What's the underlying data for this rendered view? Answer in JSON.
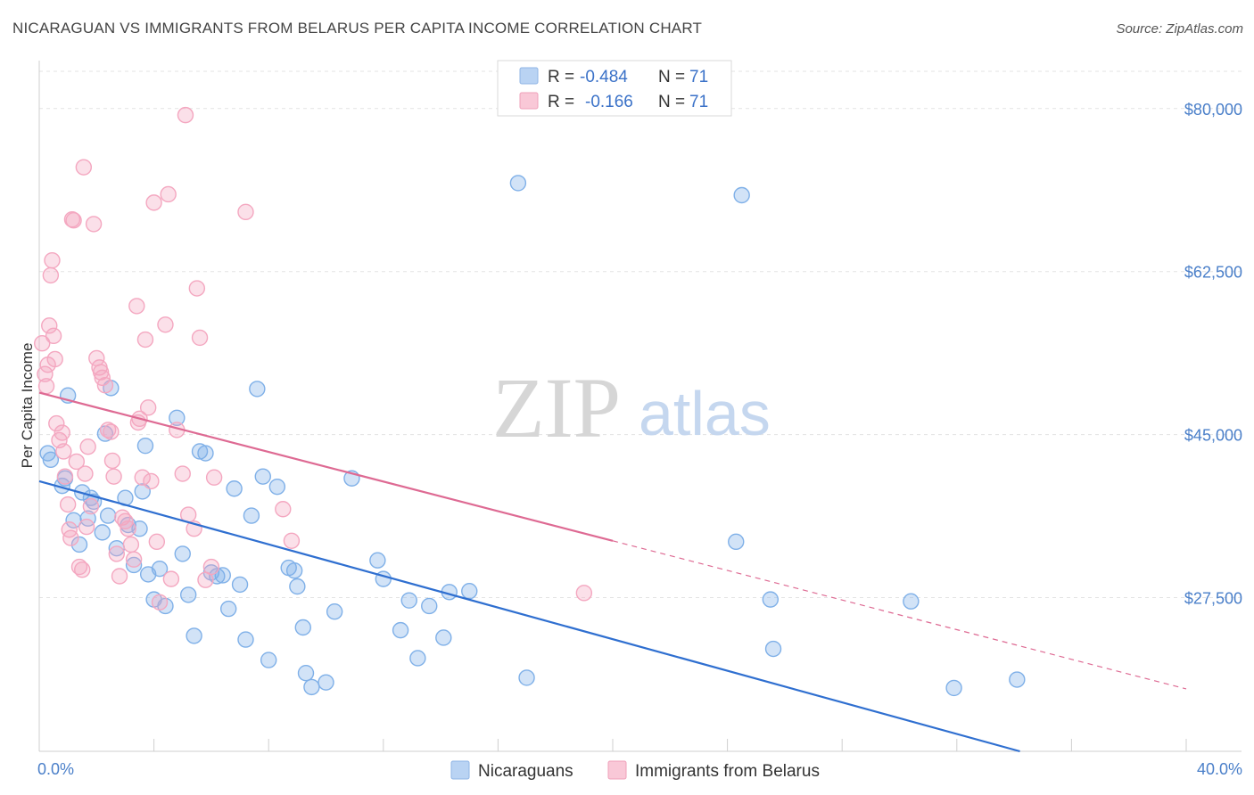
{
  "title": "NICARAGUAN VS IMMIGRANTS FROM BELARUS PER CAPITA INCOME CORRELATION CHART",
  "source": "Source: ZipAtlas.com",
  "chart_data": {
    "type": "scatter",
    "title": "NICARAGUAN VS IMMIGRANTS FROM BELARUS PER CAPITA INCOME CORRELATION CHART",
    "ylabel": "Per Capita Income",
    "xlabel": "",
    "xlim": [
      0,
      40
    ],
    "ylim": [
      11000,
      84000
    ],
    "x_tick_labels": [
      "0.0%",
      "40.0%"
    ],
    "y_ticks": [
      27500,
      45000,
      62500,
      80000
    ],
    "y_tick_labels": [
      "$27,500",
      "$45,000",
      "$62,500",
      "$80,000"
    ],
    "watermark": {
      "zip": "ZIP",
      "atlas": "atlas"
    },
    "legend": [
      {
        "r_label": "R =",
        "r_value": "-0.484",
        "n_label": "N =",
        "n_value": "71",
        "color": "#a8c8ef"
      },
      {
        "r_label": "R =",
        "r_value": "-0.166",
        "n_label": "N =",
        "n_value": "71",
        "color": "#f6b8cc"
      }
    ],
    "series": [
      {
        "name": "Nicaraguans",
        "color": "#7fb0e8",
        "line_color": "#2f6fd0",
        "trend": {
          "x0": 0,
          "y0": 40000,
          "x1": 34.2,
          "y1": 11000
        },
        "points": [
          [
            0.3,
            43000
          ],
          [
            0.4,
            42300
          ],
          [
            0.8,
            39500
          ],
          [
            0.9,
            40300
          ],
          [
            1.0,
            49200
          ],
          [
            1.2,
            35800
          ],
          [
            1.4,
            33200
          ],
          [
            1.5,
            38800
          ],
          [
            1.7,
            36000
          ],
          [
            1.8,
            38200
          ],
          [
            1.9,
            37800
          ],
          [
            2.2,
            34500
          ],
          [
            2.3,
            45100
          ],
          [
            2.4,
            36300
          ],
          [
            2.5,
            50000
          ],
          [
            2.7,
            32800
          ],
          [
            3.0,
            38200
          ],
          [
            3.1,
            35300
          ],
          [
            3.3,
            31000
          ],
          [
            3.5,
            34900
          ],
          [
            3.6,
            38900
          ],
          [
            3.7,
            43800
          ],
          [
            3.8,
            30000
          ],
          [
            4.0,
            27300
          ],
          [
            4.2,
            30600
          ],
          [
            4.4,
            26600
          ],
          [
            4.8,
            46800
          ],
          [
            5.0,
            32200
          ],
          [
            5.2,
            27800
          ],
          [
            5.4,
            23400
          ],
          [
            5.6,
            43200
          ],
          [
            5.8,
            43000
          ],
          [
            6.0,
            30200
          ],
          [
            6.2,
            29800
          ],
          [
            6.4,
            29900
          ],
          [
            6.6,
            26300
          ],
          [
            6.8,
            39200
          ],
          [
            7.0,
            28900
          ],
          [
            7.2,
            23000
          ],
          [
            7.4,
            36300
          ],
          [
            7.6,
            49900
          ],
          [
            7.8,
            40500
          ],
          [
            8.0,
            20800
          ],
          [
            8.3,
            39400
          ],
          [
            8.7,
            30700
          ],
          [
            8.9,
            30400
          ],
          [
            9.0,
            28700
          ],
          [
            9.2,
            24300
          ],
          [
            9.3,
            19400
          ],
          [
            9.5,
            17900
          ],
          [
            10.0,
            18400
          ],
          [
            10.3,
            26000
          ],
          [
            10.9,
            40300
          ],
          [
            11.8,
            31500
          ],
          [
            12.0,
            29500
          ],
          [
            12.6,
            24000
          ],
          [
            12.9,
            27200
          ],
          [
            13.2,
            21000
          ],
          [
            13.6,
            26600
          ],
          [
            14.1,
            23200
          ],
          [
            14.3,
            28100
          ],
          [
            15.0,
            28200
          ],
          [
            16.7,
            72000
          ],
          [
            17.0,
            18900
          ],
          [
            24.3,
            33500
          ],
          [
            24.5,
            70700
          ],
          [
            25.5,
            27300
          ],
          [
            25.6,
            22000
          ],
          [
            30.4,
            27100
          ],
          [
            31.9,
            17800
          ],
          [
            34.1,
            18700
          ]
        ]
      },
      {
        "name": "Immigrants from Belarus",
        "color": "#f4a7c0",
        "line_color": "#de6a93",
        "trend": {
          "x0": 0,
          "y0": 49500,
          "x1": 20,
          "y1": 33600
        },
        "trend_ext": {
          "x0": 20,
          "y0": 33600,
          "x1": 40,
          "y1": 17700
        },
        "points": [
          [
            0.1,
            54800
          ],
          [
            0.2,
            51500
          ],
          [
            0.25,
            50200
          ],
          [
            0.3,
            52500
          ],
          [
            0.35,
            56700
          ],
          [
            0.4,
            62100
          ],
          [
            0.45,
            63700
          ],
          [
            0.5,
            55600
          ],
          [
            0.55,
            53100
          ],
          [
            0.6,
            46200
          ],
          [
            0.7,
            44400
          ],
          [
            0.8,
            45200
          ],
          [
            0.85,
            43200
          ],
          [
            0.9,
            40500
          ],
          [
            1.0,
            37500
          ],
          [
            1.05,
            34800
          ],
          [
            1.1,
            33900
          ],
          [
            1.15,
            68100
          ],
          [
            1.2,
            68000
          ],
          [
            1.3,
            42100
          ],
          [
            1.4,
            30800
          ],
          [
            1.5,
            30500
          ],
          [
            1.55,
            73700
          ],
          [
            1.6,
            40800
          ],
          [
            1.65,
            35100
          ],
          [
            1.7,
            43700
          ],
          [
            1.8,
            37300
          ],
          [
            1.9,
            67600
          ],
          [
            2.0,
            53200
          ],
          [
            2.1,
            52200
          ],
          [
            2.15,
            51700
          ],
          [
            2.2,
            51100
          ],
          [
            2.3,
            50300
          ],
          [
            2.4,
            45500
          ],
          [
            2.5,
            45300
          ],
          [
            2.55,
            42200
          ],
          [
            2.6,
            40500
          ],
          [
            2.7,
            32200
          ],
          [
            2.8,
            29800
          ],
          [
            2.9,
            36100
          ],
          [
            3.0,
            35700
          ],
          [
            3.1,
            34900
          ],
          [
            3.2,
            33200
          ],
          [
            3.3,
            31600
          ],
          [
            3.4,
            58800
          ],
          [
            3.45,
            46300
          ],
          [
            3.5,
            46700
          ],
          [
            3.6,
            40400
          ],
          [
            3.7,
            55200
          ],
          [
            3.8,
            47900
          ],
          [
            3.9,
            40000
          ],
          [
            4.0,
            69900
          ],
          [
            4.1,
            33500
          ],
          [
            4.2,
            27000
          ],
          [
            4.4,
            56800
          ],
          [
            4.5,
            70800
          ],
          [
            4.6,
            29500
          ],
          [
            4.8,
            45500
          ],
          [
            5.0,
            40800
          ],
          [
            5.1,
            79300
          ],
          [
            5.2,
            36400
          ],
          [
            5.4,
            34900
          ],
          [
            5.5,
            60700
          ],
          [
            5.6,
            55400
          ],
          [
            5.8,
            29400
          ],
          [
            6.0,
            30800
          ],
          [
            6.1,
            40400
          ],
          [
            7.2,
            68900
          ],
          [
            8.5,
            37000
          ],
          [
            8.8,
            33600
          ],
          [
            19.0,
            28000
          ]
        ]
      }
    ]
  }
}
